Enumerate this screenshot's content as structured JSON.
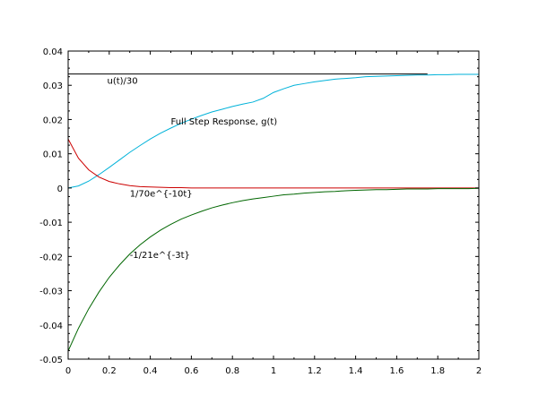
{
  "chart_data": {
    "type": "line",
    "title": "",
    "xlabel": "",
    "ylabel": "",
    "xlim": [
      0,
      2
    ],
    "ylim": [
      -0.05,
      0.04
    ],
    "x_ticks": [
      0,
      0.2,
      0.4,
      0.6,
      0.8,
      1,
      1.2,
      1.4,
      1.6,
      1.8,
      2
    ],
    "x_tick_labels": [
      "0",
      "0.2",
      "0.4",
      "0.6",
      "0.8",
      "1",
      "1.2",
      "1.4",
      "1.6",
      "1.8",
      "2"
    ],
    "y_ticks": [
      -0.05,
      -0.04,
      -0.03,
      -0.02,
      -0.01,
      0,
      0.01,
      0.02,
      0.03,
      0.04
    ],
    "y_tick_labels": [
      "-0.05",
      "-0.04",
      "-0.03",
      "-0.02",
      "-0.01",
      "0",
      "0.01",
      "0.02",
      "0.03",
      "0.04"
    ],
    "grid": false,
    "legend": "none",
    "x": [
      0,
      0.05,
      0.1,
      0.15,
      0.2,
      0.25,
      0.3,
      0.35,
      0.4,
      0.45,
      0.5,
      0.55,
      0.6,
      0.65,
      0.7,
      0.75,
      0.8,
      0.85,
      0.9,
      0.95,
      1.0,
      1.05,
      1.1,
      1.15,
      1.2,
      1.25,
      1.3,
      1.35,
      1.4,
      1.45,
      1.5,
      1.55,
      1.6,
      1.65,
      1.7,
      1.75,
      1.8,
      1.85,
      1.9,
      1.95,
      2.0
    ],
    "series": [
      {
        "color": "#00b2d9",
        "values": [
          0.0,
          0.0006,
          0.002,
          0.0039,
          0.006,
          0.0082,
          0.0104,
          0.0124,
          0.0143,
          0.016,
          0.0175,
          0.0189,
          0.0201,
          0.0212,
          0.0222,
          0.023,
          0.0238,
          0.0245,
          0.0251,
          0.0262,
          0.0279,
          0.029,
          0.03,
          0.0305,
          0.031,
          0.0314,
          0.0318,
          0.032,
          0.0322,
          0.0325,
          0.0326,
          0.0327,
          0.0328,
          0.0329,
          0.033,
          0.033,
          0.0331,
          0.0331,
          0.0332,
          0.0332,
          0.0332
        ]
      },
      {
        "color": "#cc0000",
        "values": [
          0.0143,
          0.0087,
          0.0053,
          0.0032,
          0.0019,
          0.0012,
          0.0007,
          0.0004,
          0.0003,
          0.0002,
          0.0001,
          0.0001,
          0.0,
          0.0,
          0.0,
          0.0,
          0.0,
          0.0,
          0.0,
          0.0,
          0.0,
          0.0,
          0.0,
          0.0,
          0.0,
          0.0,
          0.0,
          0.0,
          0.0,
          0.0,
          0.0,
          0.0,
          0.0,
          0.0,
          0.0,
          0.0,
          0.0,
          0.0,
          0.0,
          0.0,
          0.0
        ]
      },
      {
        "color": "#006600",
        "values": [
          -0.0476,
          -0.041,
          -0.0353,
          -0.0304,
          -0.0261,
          -0.0225,
          -0.0193,
          -0.0166,
          -0.0143,
          -0.0123,
          -0.0106,
          -0.0091,
          -0.0079,
          -0.0068,
          -0.0058,
          -0.005,
          -0.0043,
          -0.0037,
          -0.0032,
          -0.0028,
          -0.0024,
          -0.002,
          -0.0018,
          -0.0015,
          -0.0013,
          -0.0011,
          -0.001,
          -0.0008,
          -0.0007,
          -0.0006,
          -0.0005,
          -0.0005,
          -0.0004,
          -0.0003,
          -0.0003,
          -0.0003,
          -0.0002,
          -0.0002,
          -0.0002,
          -0.0002,
          -0.0001
        ]
      },
      {
        "color": "#000000",
        "x": [
          0,
          1.75
        ],
        "values": [
          0.0333,
          0.0333
        ]
      }
    ],
    "annotations": [
      {
        "text": "u(t)/30",
        "x": 0.19,
        "y": 0.0305
      },
      {
        "text": "Full Step Response, g(t)",
        "x": 0.5,
        "y": 0.0185
      },
      {
        "text": "1/70e^{-10t}",
        "x": 0.3,
        "y": -0.0025
      },
      {
        "text": "-1/21e^{-3t}",
        "x": 0.3,
        "y": -0.0205
      }
    ]
  }
}
